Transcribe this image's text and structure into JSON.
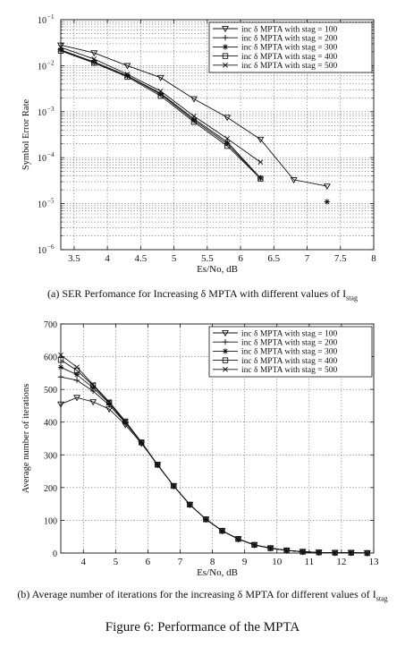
{
  "chart_data": [
    {
      "type": "line",
      "ylabel": "Symbol Error Rate",
      "xlabel": "Es/No, dB",
      "yscale": "log",
      "xlim": [
        3.3,
        8
      ],
      "ylim": [
        1e-06,
        0.1
      ],
      "xticks": [
        3.5,
        4,
        4.5,
        5,
        5.5,
        6,
        6.5,
        7,
        7.5,
        8
      ],
      "xtick_labels": [
        "3.5",
        "4",
        "4.5",
        "5",
        "5.5",
        "6",
        "6.5",
        "7",
        "7.5",
        "8"
      ],
      "ytick_labels": [
        {
          "base": "10",
          "exp": "−6"
        },
        {
          "base": "10",
          "exp": "−5"
        },
        {
          "base": "10",
          "exp": "−4"
        },
        {
          "base": "10",
          "exp": "−3"
        },
        {
          "base": "10",
          "exp": "−2"
        },
        {
          "base": "10",
          "exp": "−1"
        }
      ],
      "grid": true,
      "legend_position": "top-right",
      "series": [
        {
          "name": "inc δ MPTA with stag = 100",
          "marker": "triangle-down",
          "x": [
            3.3,
            3.8,
            4.3,
            4.8,
            5.3,
            5.8,
            6.3,
            6.8,
            7.3
          ],
          "y": [
            0.028,
            0.019,
            0.01,
            0.0055,
            0.0019,
            0.00075,
            0.00025,
            3.3e-05,
            2.4e-05
          ]
        },
        {
          "name": "inc δ MPTA with stag = 200",
          "marker": "plus",
          "x": [
            3.3,
            3.8,
            4.3,
            4.8,
            5.3,
            5.8,
            6.3
          ],
          "y": [
            0.022,
            0.012,
            0.006,
            0.0025,
            0.0007,
            0.00022,
            3.6e-05
          ]
        },
        {
          "name": "inc δ MPTA with stag = 300",
          "marker": "star",
          "x": [
            3.3,
            3.8,
            4.3,
            4.8,
            5.3,
            5.8,
            6.3,
            7.3
          ],
          "y": [
            0.022,
            0.012,
            0.006,
            0.0024,
            0.00065,
            0.0002,
            3.6e-05,
            1.1e-05
          ]
        },
        {
          "name": "inc δ MPTA with stag = 400",
          "marker": "square",
          "x": [
            3.3,
            3.8,
            4.3,
            4.8,
            5.3,
            5.8,
            6.3
          ],
          "y": [
            0.021,
            0.0115,
            0.0057,
            0.0022,
            0.0006,
            0.00018,
            3.5e-05
          ]
        },
        {
          "name": "inc δ MPTA with stag = 500",
          "marker": "cross",
          "x": [
            3.3,
            3.8,
            4.3,
            4.8,
            5.3,
            5.8,
            6.3
          ],
          "y": [
            0.025,
            0.014,
            0.0065,
            0.0028,
            0.0008,
            0.00026,
            8e-05
          ]
        }
      ]
    },
    {
      "type": "line",
      "ylabel": "Average number of iterations",
      "xlabel": "Es/No, dB",
      "xlim": [
        3.3,
        13
      ],
      "ylim": [
        0,
        700
      ],
      "xticks": [
        4,
        5,
        6,
        7,
        8,
        9,
        10,
        11,
        12,
        13
      ],
      "xtick_labels": [
        "4",
        "5",
        "6",
        "7",
        "8",
        "9",
        "10",
        "11",
        "12",
        "13"
      ],
      "yticks": [
        0,
        100,
        200,
        300,
        400,
        500,
        600,
        700
      ],
      "ytick_labels": [
        "0",
        "100",
        "200",
        "300",
        "400",
        "500",
        "600",
        "700"
      ],
      "grid": true,
      "legend_position": "top-right",
      "series": [
        {
          "name": "inc δ MPTA with stag = 100",
          "marker": "triangle-down",
          "x": [
            3.3,
            3.8,
            4.3,
            4.8,
            5.3,
            5.8,
            6.3,
            6.8,
            7.3,
            7.8,
            8.3,
            8.8,
            9.3,
            9.8,
            10.3,
            10.8,
            11.3,
            11.8,
            12.3,
            12.8
          ],
          "y": [
            455,
            475,
            462,
            440,
            392,
            335,
            270,
            205,
            148,
            103,
            68,
            43,
            25,
            15,
            8,
            4,
            2,
            1,
            1,
            0
          ]
        },
        {
          "name": "inc δ MPTA with stag = 200",
          "marker": "plus",
          "x": [
            3.3,
            3.8,
            4.3,
            4.8,
            5.3,
            5.8,
            6.3,
            6.8,
            7.3,
            7.8,
            8.3,
            8.8,
            9.3,
            9.8,
            10.3,
            10.8,
            11.3,
            11.8,
            12.3,
            12.8
          ],
          "y": [
            538,
            528,
            495,
            452,
            398,
            338,
            270,
            205,
            148,
            103,
            68,
            43,
            25,
            15,
            8,
            4,
            2,
            1,
            1,
            0
          ]
        },
        {
          "name": "inc δ MPTA with stag = 300",
          "marker": "star",
          "x": [
            3.3,
            3.8,
            4.3,
            4.8,
            5.3,
            5.8,
            6.3,
            6.8,
            7.3,
            7.8,
            8.3,
            8.8,
            9.3,
            9.8,
            10.3,
            10.8,
            11.3,
            11.8,
            12.3,
            12.8
          ],
          "y": [
            568,
            545,
            505,
            458,
            400,
            338,
            270,
            205,
            148,
            103,
            68,
            43,
            25,
            15,
            8,
            4,
            2,
            1,
            1,
            0
          ]
        },
        {
          "name": "inc δ MPTA with stag = 400",
          "marker": "square",
          "x": [
            3.3,
            3.8,
            4.3,
            4.8,
            5.3,
            5.8,
            6.3,
            6.8,
            7.3,
            7.8,
            8.3,
            8.8,
            9.3,
            9.8,
            10.3,
            10.8,
            11.3,
            11.8,
            12.3,
            12.8
          ],
          "y": [
            590,
            558,
            512,
            460,
            402,
            338,
            270,
            205,
            148,
            103,
            68,
            43,
            25,
            15,
            8,
            4,
            2,
            1,
            1,
            0
          ]
        },
        {
          "name": "inc δ MPTA with stag = 500",
          "marker": "cross",
          "x": [
            3.3,
            3.8,
            4.3,
            4.8,
            5.3,
            5.8,
            6.3,
            6.8,
            7.3,
            7.8,
            8.3,
            8.8,
            9.3,
            9.8,
            10.3,
            10.8,
            11.3,
            11.8,
            12.3,
            12.8
          ],
          "y": [
            605,
            568,
            515,
            462,
            403,
            339,
            270,
            205,
            148,
            103,
            68,
            43,
            25,
            15,
            8,
            4,
            2,
            1,
            1,
            0
          ]
        }
      ]
    }
  ],
  "captions": {
    "a_prefix": "(a) SER Perfomance for Increasing δ MPTA with different values of I",
    "a_sub": "stag",
    "b_prefix": "(b) Average number of iterations for the increasing δ MPTA for different values of I",
    "b_sub": "stag",
    "figure": "Figure 6: Performance of the MPTA"
  }
}
